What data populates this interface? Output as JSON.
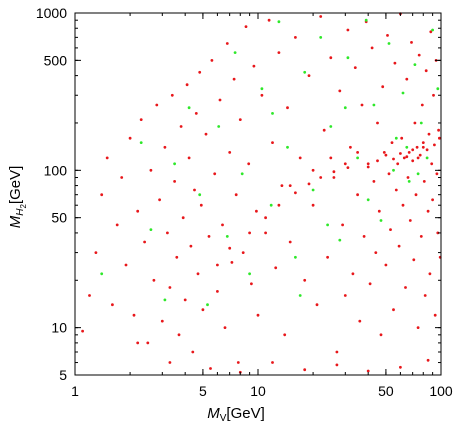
{
  "chart_data": {
    "type": "scatter",
    "x_log": true,
    "y_log": true,
    "xlim": [
      1,
      100
    ],
    "ylim": [
      5,
      1000
    ],
    "x_ticks": [
      {
        "value": 1,
        "label": "1"
      },
      {
        "value": 5,
        "label": "5"
      },
      {
        "value": 10,
        "label": "10"
      },
      {
        "value": 50,
        "label": "50"
      },
      {
        "value": 100,
        "label": "100"
      }
    ],
    "y_ticks": [
      {
        "value": 5,
        "label": "5"
      },
      {
        "value": 10,
        "label": "10"
      },
      {
        "value": 50,
        "label": "50"
      },
      {
        "value": 100,
        "label": "100"
      },
      {
        "value": 500,
        "label": "500"
      },
      {
        "value": 1000,
        "label": "1000"
      }
    ],
    "xlabel": {
      "main": "M",
      "sub": "V",
      "unit": "[GeV]"
    },
    "ylabel": {
      "main": "M",
      "sub": "H",
      "subsub": "2",
      "unit": "[GeV]"
    },
    "grid": false,
    "series": [
      {
        "color": "#e8171b",
        "points": [
          [
            1.1,
            9.5
          ],
          [
            1.2,
            16
          ],
          [
            1.3,
            30
          ],
          [
            1.4,
            70
          ],
          [
            1.5,
            120
          ],
          [
            1.6,
            14
          ],
          [
            1.7,
            45
          ],
          [
            1.8,
            90
          ],
          [
            1.9,
            25
          ],
          [
            2.0,
            160
          ],
          [
            2.1,
            12
          ],
          [
            2.2,
            55
          ],
          [
            2.3,
            210
          ],
          [
            2.4,
            35
          ],
          [
            2.5,
            8
          ],
          [
            2.6,
            100
          ],
          [
            2.7,
            20
          ],
          [
            2.8,
            260
          ],
          [
            2.9,
            65
          ],
          [
            3.0,
            11
          ],
          [
            3.1,
            140
          ],
          [
            3.2,
            40
          ],
          [
            3.3,
            18
          ],
          [
            3.4,
            300
          ],
          [
            3.5,
            85
          ],
          [
            3.6,
            28
          ],
          [
            3.7,
            9
          ],
          [
            3.8,
            190
          ],
          [
            3.9,
            50
          ],
          [
            4.0,
            15
          ],
          [
            4.1,
            350
          ],
          [
            4.2,
            120
          ],
          [
            4.3,
            33
          ],
          [
            4.4,
            7
          ],
          [
            4.5,
            75
          ],
          [
            4.6,
            230
          ],
          [
            4.7,
            22
          ],
          [
            4.8,
            420
          ],
          [
            4.9,
            60
          ],
          [
            5.0,
            13
          ],
          [
            5.2,
            170
          ],
          [
            5.4,
            38
          ],
          [
            5.6,
            500
          ],
          [
            5.8,
            95
          ],
          [
            6.0,
            17
          ],
          [
            6.2,
            280
          ],
          [
            6.4,
            45
          ],
          [
            6.6,
            10
          ],
          [
            6.8,
            640
          ],
          [
            7.0,
            130
          ],
          [
            7.2,
            26
          ],
          [
            7.4,
            380
          ],
          [
            7.6,
            70
          ],
          [
            7.8,
            6
          ],
          [
            8.0,
            210
          ],
          [
            8.3,
            30
          ],
          [
            8.6,
            820
          ],
          [
            8.9,
            110
          ],
          [
            9.2,
            19
          ],
          [
            9.5,
            460
          ],
          [
            9.8,
            55
          ],
          [
            10,
            12
          ],
          [
            10.5,
            300
          ],
          [
            11,
            40
          ],
          [
            11.5,
            900
          ],
          [
            12,
            150
          ],
          [
            12.5,
            24
          ],
          [
            13,
            560
          ],
          [
            13.5,
            80
          ],
          [
            14,
            9
          ],
          [
            14.5,
            250
          ],
          [
            15,
            35
          ],
          [
            16,
            700
          ],
          [
            17,
            120
          ],
          [
            18,
            20
          ],
          [
            19,
            400
          ],
          [
            20,
            60
          ],
          [
            21,
            14
          ],
          [
            22,
            950
          ],
          [
            23,
            180
          ],
          [
            24,
            28
          ],
          [
            25,
            520
          ],
          [
            26,
            90
          ],
          [
            27,
            7
          ],
          [
            28,
            320
          ],
          [
            29,
            45
          ],
          [
            30,
            16
          ],
          [
            31,
            780
          ],
          [
            32,
            140
          ],
          [
            33,
            22
          ],
          [
            34,
            450
          ],
          [
            35,
            70
          ],
          [
            36,
            11
          ],
          [
            37,
            260
          ],
          [
            38,
            38
          ],
          [
            39,
            880
          ],
          [
            40,
            110
          ],
          [
            41,
            19
          ],
          [
            42,
            600
          ],
          [
            43,
            85
          ],
          [
            44,
            30
          ],
          [
            45,
            200
          ],
          [
            46,
            55
          ],
          [
            47,
            9
          ],
          [
            48,
            340
          ],
          [
            49,
            130
          ],
          [
            50,
            25
          ],
          [
            51,
            720
          ],
          [
            52,
            95
          ],
          [
            53,
            42
          ],
          [
            54,
            150
          ],
          [
            55,
            13
          ],
          [
            56,
            480
          ],
          [
            57,
            75
          ],
          [
            58,
            110
          ],
          [
            59,
            33
          ],
          [
            60,
            990
          ],
          [
            61,
            160
          ],
          [
            62,
            60
          ],
          [
            63,
            120
          ],
          [
            64,
            18
          ],
          [
            65,
            380
          ],
          [
            66,
            90
          ],
          [
            67,
            130
          ],
          [
            68,
            48
          ],
          [
            69,
            650
          ],
          [
            70,
            115
          ],
          [
            71,
            27
          ],
          [
            72,
            200
          ],
          [
            73,
            70
          ],
          [
            74,
            140
          ],
          [
            75,
            10
          ],
          [
            76,
            540
          ],
          [
            77,
            125
          ],
          [
            78,
            38
          ],
          [
            79,
            260
          ],
          [
            80,
            150
          ],
          [
            81,
            85
          ],
          [
            82,
            16
          ],
          [
            83,
            430
          ],
          [
            84,
            135
          ],
          [
            85,
            55
          ],
          [
            86,
            170
          ],
          [
            87,
            22
          ],
          [
            88,
            760
          ],
          [
            89,
            110
          ],
          [
            90,
            65
          ],
          [
            91,
            300
          ],
          [
            92,
            145
          ],
          [
            93,
            12
          ],
          [
            94,
            500
          ],
          [
            95,
            95
          ],
          [
            96,
            40
          ],
          [
            97,
            180
          ],
          [
            98,
            160
          ],
          [
            99,
            28
          ],
          [
            2.2,
            8
          ],
          [
            3.3,
            6
          ],
          [
            5.5,
            5.5
          ],
          [
            8,
            5.2
          ],
          [
            12,
            6
          ],
          [
            18,
            5.4
          ],
          [
            27,
            5.8
          ],
          [
            40,
            5.3
          ],
          [
            60,
            5.6
          ],
          [
            85,
            6.2
          ],
          [
            15,
            80
          ],
          [
            20,
            100
          ],
          [
            25,
            120
          ],
          [
            30,
            110
          ],
          [
            35,
            130
          ],
          [
            40,
            105
          ],
          [
            45,
            115
          ],
          [
            50,
            125
          ],
          [
            55,
            118
          ],
          [
            60,
            128
          ],
          [
            65,
            122
          ],
          [
            70,
            135
          ],
          [
            75,
            120
          ],
          [
            80,
            140
          ],
          [
            6,
            25
          ],
          [
            7,
            32
          ],
          [
            9,
            40
          ],
          [
            11,
            50
          ],
          [
            13,
            60
          ],
          [
            16,
            72
          ],
          [
            19,
            82
          ],
          [
            22,
            90
          ],
          [
            26,
            98
          ],
          [
            31,
            104
          ]
        ]
      },
      {
        "color": "#2ee82a",
        "points": [
          [
            1.4,
            22
          ],
          [
            2.3,
            150
          ],
          [
            2.6,
            42
          ],
          [
            3.1,
            15
          ],
          [
            3.5,
            110
          ],
          [
            4.2,
            250
          ],
          [
            4.8,
            70
          ],
          [
            5.3,
            14
          ],
          [
            6.1,
            190
          ],
          [
            6.8,
            38
          ],
          [
            7.5,
            560
          ],
          [
            8.2,
            95
          ],
          [
            9.0,
            22
          ],
          [
            10.5,
            330
          ],
          [
            11.8,
            60
          ],
          [
            13,
            880
          ],
          [
            14.5,
            140
          ],
          [
            16,
            28
          ],
          [
            18,
            420
          ],
          [
            20,
            75
          ],
          [
            22,
            700
          ],
          [
            25,
            190
          ],
          [
            28,
            36
          ],
          [
            31,
            520
          ],
          [
            35,
            120
          ],
          [
            39,
            900
          ],
          [
            43,
            260
          ],
          [
            47,
            48
          ],
          [
            52,
            640
          ],
          [
            57,
            160
          ],
          [
            62,
            310
          ],
          [
            67,
            85
          ],
          [
            72,
            470
          ],
          [
            78,
            200
          ],
          [
            84,
            120
          ],
          [
            90,
            780
          ],
          [
            96,
            330
          ],
          [
            55,
            100
          ],
          [
            65,
            140
          ],
          [
            75,
            95
          ],
          [
            40,
            65
          ],
          [
            30,
            250
          ],
          [
            24,
            45
          ],
          [
            17,
            16
          ],
          [
            12,
            230
          ]
        ]
      }
    ]
  }
}
